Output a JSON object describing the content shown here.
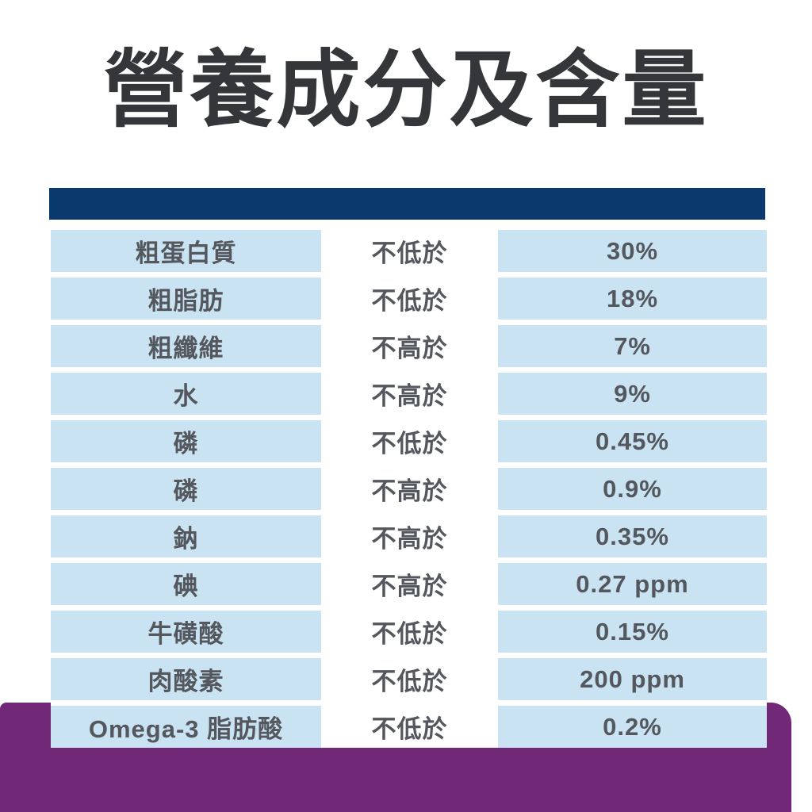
{
  "title": {
    "text": "營養成分及含量",
    "color": "#35363a"
  },
  "colors": {
    "header_bar_navy": "#0a3a6d",
    "cell_light_blue": "#c9e3f2",
    "footer_band_purple": "#712877",
    "row_text_gray": "#54575d",
    "title_text": "#35363a",
    "background": "#ffffff"
  },
  "chart_data": {
    "type": "table",
    "title": "營養成分及含量",
    "rows": [
      {
        "nutrient": "粗蛋白質",
        "condition": "不低於",
        "value": "30%"
      },
      {
        "nutrient": "粗脂肪",
        "condition": "不低於",
        "value": "18%"
      },
      {
        "nutrient": "粗纖維",
        "condition": "不高於",
        "value": "7%"
      },
      {
        "nutrient": "水",
        "condition": "不高於",
        "value": "9%"
      },
      {
        "nutrient": "磷",
        "condition": "不低於",
        "value": "0.45%"
      },
      {
        "nutrient": "磷",
        "condition": "不高於",
        "value": "0.9%"
      },
      {
        "nutrient": "鈉",
        "condition": "不高於",
        "value": "0.35%"
      },
      {
        "nutrient": "碘",
        "condition": "不高於",
        "value": "0.27 ppm"
      },
      {
        "nutrient": "牛磺酸",
        "condition": "不低於",
        "value": "0.15%"
      },
      {
        "nutrient": "肉酸素",
        "condition": "不低於",
        "value": "200 ppm"
      },
      {
        "nutrient": "Omega-3 脂肪酸",
        "condition": "不低於",
        "value": "0.2%"
      }
    ]
  }
}
